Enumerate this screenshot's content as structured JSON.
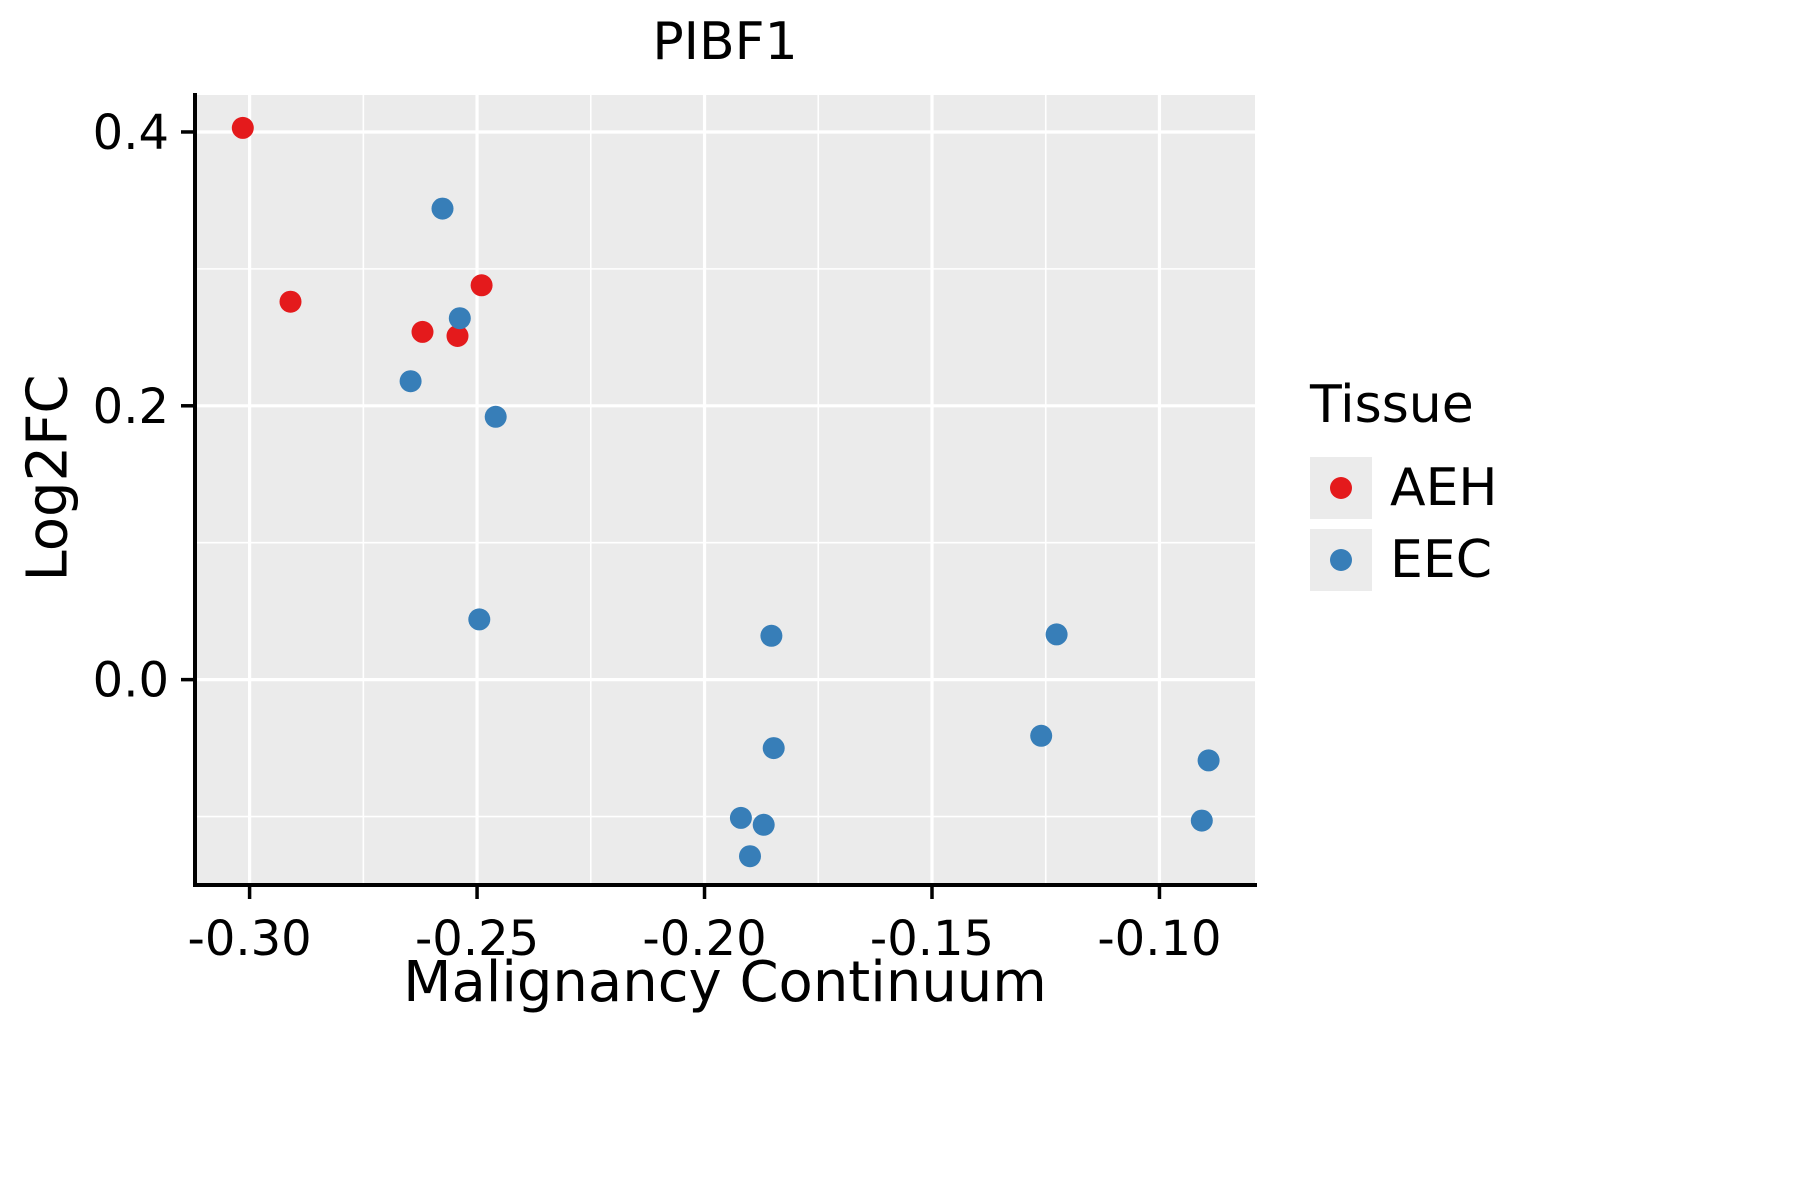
{
  "chart_data": {
    "type": "scatter",
    "title": "PIBF1",
    "xlabel": "Malignancy Continuum",
    "ylabel": "Log2FC",
    "xlim": [
      -0.312,
      -0.079
    ],
    "ylim": [
      -0.15,
      0.427
    ],
    "x_ticks": [
      -0.3,
      -0.25,
      -0.2,
      -0.15,
      -0.1
    ],
    "x_tick_labels": [
      "-0.30",
      "-0.25",
      "-0.20",
      "-0.15",
      "-0.10"
    ],
    "x_minor_ticks": [
      -0.275,
      -0.225,
      -0.175,
      -0.125
    ],
    "y_ticks": [
      0.0,
      0.2,
      0.4
    ],
    "y_tick_labels": [
      "0.0",
      "0.2",
      "0.4"
    ],
    "y_minor_ticks": [
      -0.1,
      0.1,
      0.3
    ],
    "grid": true,
    "panel_background": "#EBEBEB",
    "grid_color": "#FFFFFF",
    "point_radius": 11,
    "legend": {
      "title": "Tissue",
      "position": "right",
      "entries": [
        {
          "label": "AEH",
          "color": "#E41A1C"
        },
        {
          "label": "EEC",
          "color": "#377EB8"
        }
      ]
    },
    "series": [
      {
        "name": "AEH",
        "color": "#E41A1C",
        "points": [
          [
            -0.3015,
            0.403
          ],
          [
            -0.291,
            0.276
          ],
          [
            -0.262,
            0.254
          ],
          [
            -0.2543,
            0.251
          ],
          [
            -0.249,
            0.288
          ]
        ]
      },
      {
        "name": "EEC",
        "color": "#377EB8",
        "points": [
          [
            -0.2576,
            0.344
          ],
          [
            -0.2646,
            0.218
          ],
          [
            -0.2538,
            0.264
          ],
          [
            -0.2459,
            0.192
          ],
          [
            -0.2495,
            0.044
          ],
          [
            -0.1853,
            0.032
          ],
          [
            -0.1848,
            -0.05
          ],
          [
            -0.192,
            -0.101
          ],
          [
            -0.187,
            -0.106
          ],
          [
            -0.19,
            -0.129
          ],
          [
            -0.1226,
            0.033
          ],
          [
            -0.126,
            -0.041
          ],
          [
            -0.0892,
            -0.059
          ],
          [
            -0.0907,
            -0.103
          ]
        ]
      }
    ]
  }
}
